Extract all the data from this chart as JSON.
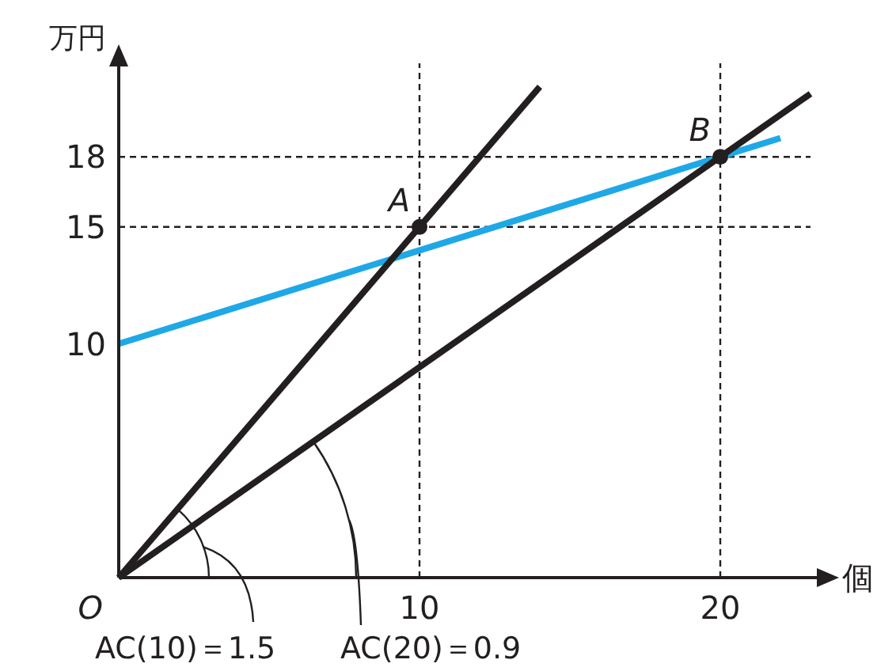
{
  "chart_data": {
    "type": "line",
    "xlabel": "個",
    "ylabel": "万円",
    "xlim": [
      0,
      23
    ],
    "ylim": [
      0,
      22
    ],
    "xticks": [
      10,
      20
    ],
    "yticks": [
      10,
      15,
      18
    ],
    "series": [
      {
        "x": [
          0,
          22
        ],
        "values": [
          10,
          18.8
        ],
        "color": "#1fa8e6"
      },
      {
        "x": [
          0,
          14
        ],
        "values": [
          0,
          21
        ],
        "color": "#231f20"
      },
      {
        "x": [
          0,
          23
        ],
        "values": [
          0,
          20.7
        ],
        "color": "#231f20"
      },
      {
        "type": "scatter",
        "x": [
          10,
          20
        ],
        "values": [
          15,
          18
        ],
        "color": "#231f20",
        "marker": "circle"
      }
    ],
    "ref_lines": [
      {
        "axis": "y",
        "value": 15,
        "color": "#231f20",
        "line_style": "dashed"
      },
      {
        "axis": "y",
        "value": 18,
        "color": "#231f20",
        "line_style": "dashed"
      },
      {
        "axis": "x",
        "value": 10,
        "color": "#231f20",
        "line_style": "dashed"
      },
      {
        "axis": "x",
        "value": 20,
        "color": "#231f20",
        "line_style": "dashed"
      }
    ],
    "annotations": [
      {
        "text": "A",
        "x": 10,
        "y": 15
      },
      {
        "text": "B",
        "x": 20,
        "y": 18
      },
      {
        "text": "O",
        "x": 0,
        "y": 0
      },
      "AC(10)＝1.5",
      "AC(20)＝0.9"
    ],
    "grid": false
  }
}
